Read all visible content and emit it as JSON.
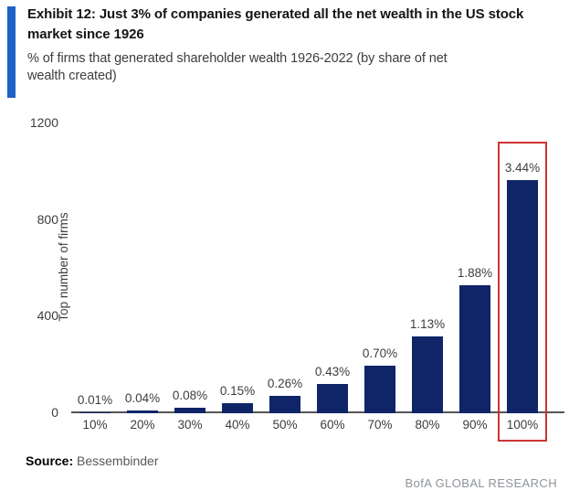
{
  "header": {
    "title": "Exhibit 12: Just 3% of companies generated all the net wealth in the US stock market since 1926",
    "subtitle": "% of firms that generated shareholder wealth 1926-2022 (by share of net wealth created)"
  },
  "chart_data": {
    "type": "bar",
    "title": "Exhibit 12: Just 3% of companies generated all the net wealth in the US stock market since 1926",
    "subtitle": "% of firms that generated shareholder wealth 1926-2022 (by share of net wealth created)",
    "categories": [
      "10%",
      "20%",
      "30%",
      "40%",
      "50%",
      "60%",
      "70%",
      "80%",
      "90%",
      "100%"
    ],
    "values": [
      3,
      11,
      22,
      42,
      73,
      121,
      197,
      318,
      529,
      966
    ],
    "bar_labels": [
      "0.01%",
      "0.04%",
      "0.08%",
      "0.15%",
      "0.26%",
      "0.43%",
      "0.70%",
      "1.13%",
      "1.88%",
      "3.44%"
    ],
    "xlabel": "",
    "ylabel": "Top number of firms",
    "yticks": [
      0,
      400,
      800,
      1200
    ],
    "ylim": [
      0,
      1200
    ],
    "grid": false,
    "legend": "none",
    "highlighted_category": "100%",
    "note": "values are firm counts estimated from the 0-1200 axis; printed labels show % of firms"
  },
  "footer": {
    "source_label": "Source:",
    "source_value": "Bessembinder",
    "brand": "BofA GLOBAL RESEARCH"
  },
  "colors": {
    "accent": "#1f62c8",
    "bar": "#0f2568",
    "highlight": "#cc3333",
    "axis": "#555555",
    "title_text": "#141414",
    "label_text": "#3d3d3d",
    "brand_text": "#8f9499"
  }
}
